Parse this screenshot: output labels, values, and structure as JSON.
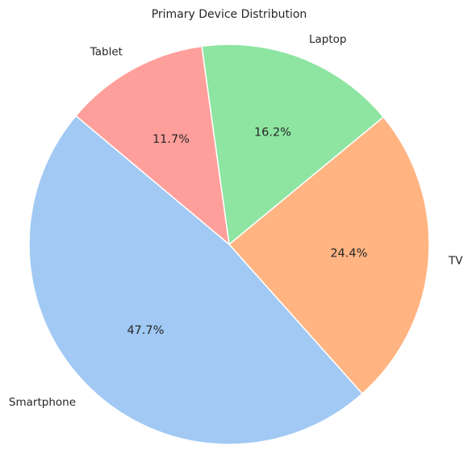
{
  "chart_data": {
    "type": "pie",
    "title": "Primary Device Distribution",
    "start_angle_deg": 140,
    "direction": "counterclockwise",
    "slices": [
      {
        "label": "Smartphone",
        "value": 47.7,
        "pct_label": "47.7%",
        "color": "#a1c9f4"
      },
      {
        "label": "TV",
        "value": 24.4,
        "pct_label": "24.4%",
        "color": "#ffb482"
      },
      {
        "label": "Laptop",
        "value": 16.2,
        "pct_label": "16.2%",
        "color": "#8de5a1"
      },
      {
        "label": "Tablet",
        "value": 11.7,
        "pct_label": "11.7%",
        "color": "#ff9f9b"
      }
    ],
    "edge_color": "#ffffff"
  }
}
